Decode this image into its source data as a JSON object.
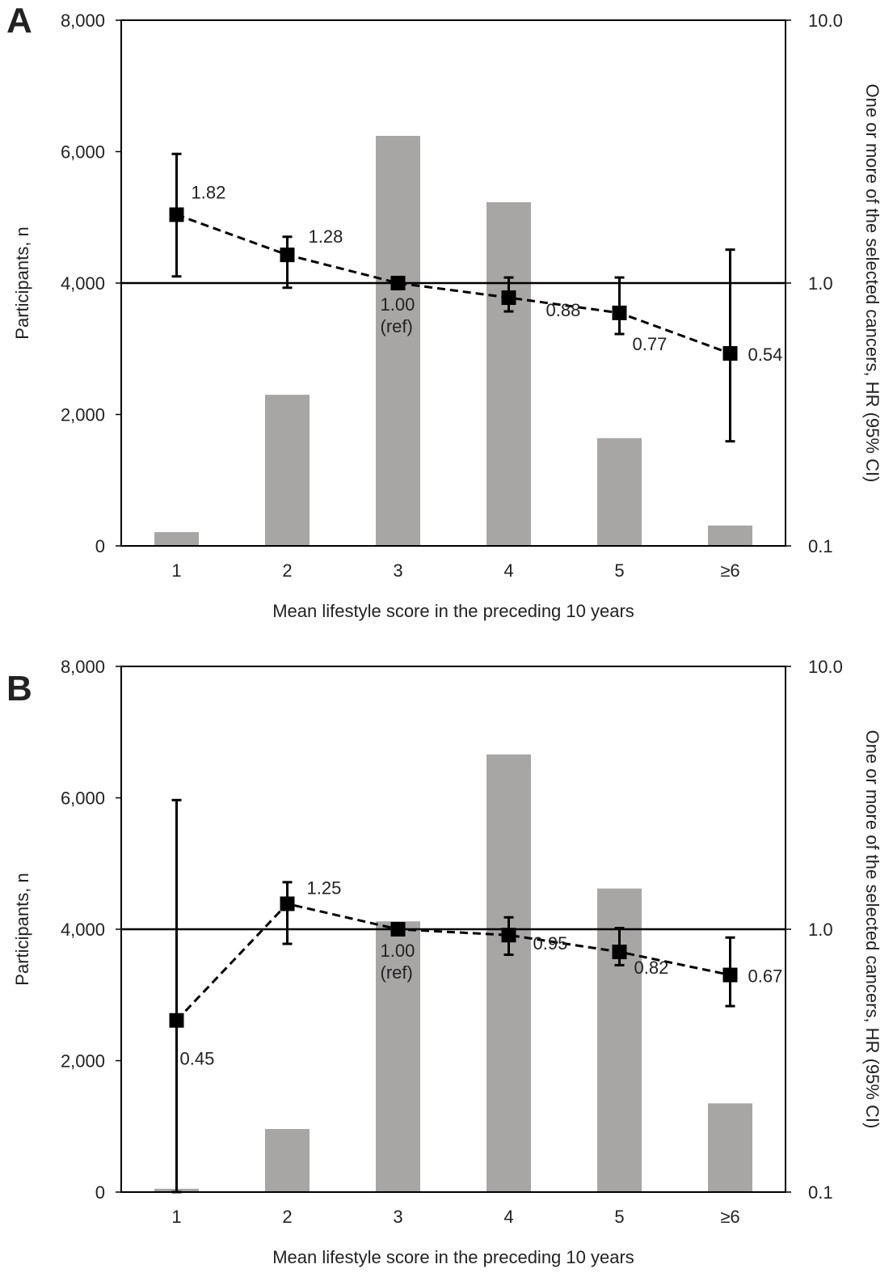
{
  "colors": {
    "bar": "#a8a5a5",
    "line": "#000000",
    "text": "#222222"
  },
  "chart_data": [
    {
      "panel_label": "A",
      "type": "bar",
      "categories": [
        "1",
        "2",
        "3",
        "4",
        "5",
        "≥6"
      ],
      "xlabel": "Mean lifestyle score in the preceding 10 years",
      "ylabel": "Participants, n",
      "y2label": "One or more of the selected cancers, HR (95% CI)",
      "ylim": [
        0,
        8000
      ],
      "yticks": [
        "0",
        "2,000",
        "4,000",
        "6,000",
        "8,000"
      ],
      "y2lim": [
        0.1,
        10.0
      ],
      "y2scale": "log",
      "y2ticks": [
        "0.1",
        "1.0",
        "10.0"
      ],
      "reference_line": 1.0,
      "bar_values": [
        210,
        2300,
        6240,
        5230,
        1640,
        310
      ],
      "hr": [
        1.82,
        1.28,
        1.0,
        0.88,
        0.77,
        0.54
      ],
      "hr_lower": [
        1.06,
        0.96,
        1.0,
        0.78,
        0.64,
        0.25
      ],
      "hr_upper": [
        3.1,
        1.5,
        1.0,
        1.05,
        1.05,
        1.34
      ],
      "hr_labels": [
        "1.82",
        "1.28",
        "1.00\n(ref)",
        "0.88",
        "0.77",
        "0.54"
      ]
    },
    {
      "panel_label": "B",
      "type": "bar",
      "categories": [
        "1",
        "2",
        "3",
        "4",
        "5",
        "≥6"
      ],
      "xlabel": "Mean lifestyle score in the preceding 10 years",
      "ylabel": "Participants, n",
      "y2label": "One or more of the selected cancers, HR (95% CI)",
      "ylim": [
        0,
        8000
      ],
      "yticks": [
        "0",
        "2,000",
        "4,000",
        "6,000",
        "8,000"
      ],
      "y2lim": [
        0.1,
        10.0
      ],
      "y2scale": "log",
      "y2ticks": [
        "0.1",
        "1.0",
        "10.0"
      ],
      "reference_line": 1.0,
      "bar_values": [
        50,
        960,
        4120,
        6660,
        4620,
        1350
      ],
      "hr": [
        0.45,
        1.25,
        1.0,
        0.95,
        0.82,
        0.67
      ],
      "hr_lower": [
        0.1,
        0.88,
        1.0,
        0.8,
        0.73,
        0.51
      ],
      "hr_upper": [
        3.1,
        1.51,
        1.0,
        1.11,
        1.01,
        0.93
      ],
      "hr_labels": [
        "0.45",
        "1.25",
        "1.00\n(ref)",
        "0.95",
        "0.82",
        "0.67"
      ]
    }
  ]
}
